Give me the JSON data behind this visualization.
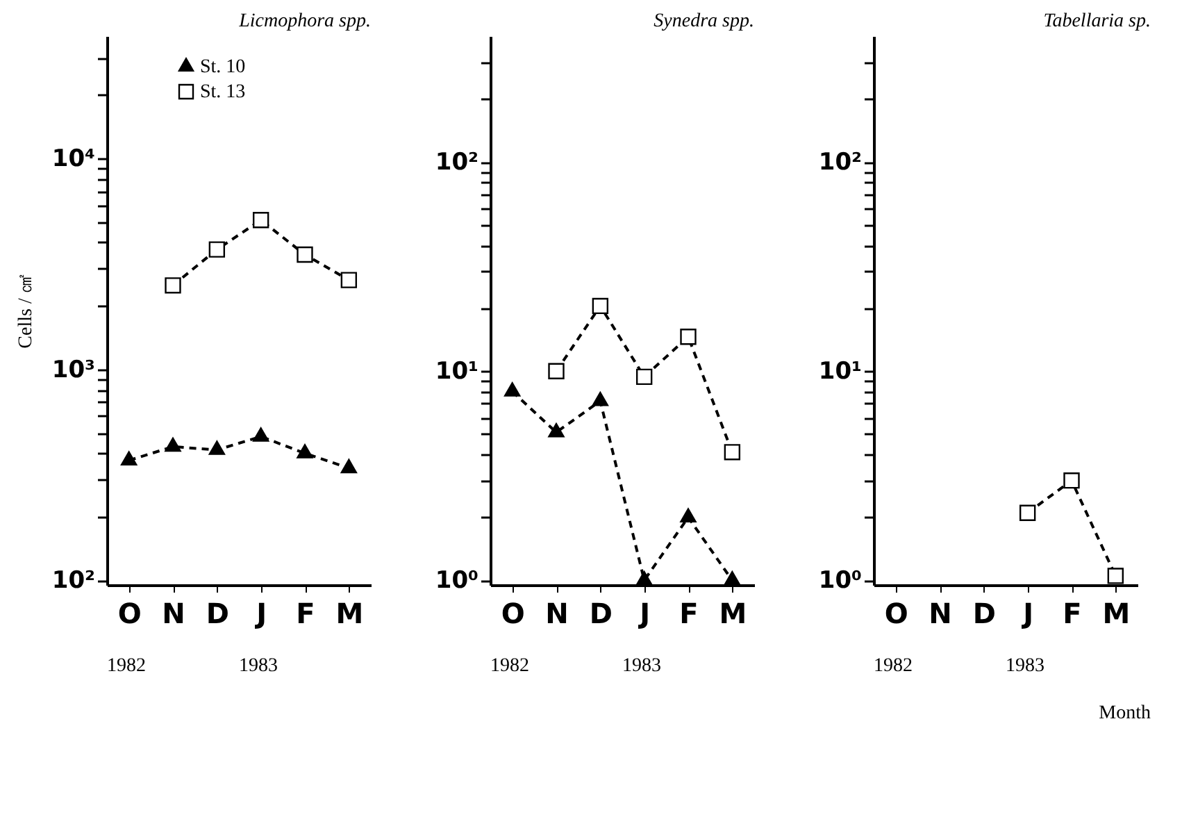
{
  "chart_data": [
    {
      "type": "line",
      "title": "Licmophora spp.",
      "ylabel": "Cells / ㎠",
      "categories": [
        "O",
        "N",
        "D",
        "J",
        "F",
        "M"
      ],
      "log": true,
      "ylim": [
        95,
        38000
      ],
      "yticks": [
        {
          "value": 100,
          "label": "10²"
        },
        {
          "value": 200,
          "label": null
        },
        {
          "value": 300,
          "label": null
        },
        {
          "value": 400,
          "label": null
        },
        {
          "value": 500,
          "label": null
        },
        {
          "value": 600,
          "label": null
        },
        {
          "value": 700,
          "label": null
        },
        {
          "value": 800,
          "label": null
        },
        {
          "value": 900,
          "label": null
        },
        {
          "value": 1000,
          "label": "10³"
        },
        {
          "value": 2000,
          "label": null
        },
        {
          "value": 3000,
          "label": null
        },
        {
          "value": 4000,
          "label": null
        },
        {
          "value": 5000,
          "label": null
        },
        {
          "value": 6000,
          "label": null
        },
        {
          "value": 7000,
          "label": null
        },
        {
          "value": 8000,
          "label": null
        },
        {
          "value": 9000,
          "label": null
        },
        {
          "value": 10000,
          "label": "10⁴"
        },
        {
          "value": 20000,
          "label": null
        },
        {
          "value": 30000,
          "label": null
        }
      ],
      "line_style": "dashed",
      "legend": "top left",
      "grid": false,
      "series": [
        {
          "name": "St. 10",
          "color": "#000000",
          "marker": "triangle",
          "values": [
            370,
            430,
            415,
            480,
            400,
            340
          ]
        },
        {
          "name": "St. 13",
          "color": "#000000",
          "marker": "square",
          "values": [
            null,
            2500,
            3700,
            5100,
            3500,
            2650
          ]
        }
      ],
      "annotations": [
        "1982",
        "1983"
      ]
    },
    {
      "type": "line",
      "title": "Synedra spp.",
      "categories": [
        "O",
        "N",
        "D",
        "J",
        "F",
        "M"
      ],
      "log": true,
      "ylim": [
        0.95,
        400
      ],
      "yticks": [
        {
          "value": 1,
          "label": "10⁰"
        },
        {
          "value": 2,
          "label": null
        },
        {
          "value": 3,
          "label": null
        },
        {
          "value": 4,
          "label": null
        },
        {
          "value": 5,
          "label": null
        },
        {
          "value": 6,
          "label": null
        },
        {
          "value": 7,
          "label": null
        },
        {
          "value": 8,
          "label": null
        },
        {
          "value": 9,
          "label": null
        },
        {
          "value": 10,
          "label": "10¹"
        },
        {
          "value": 20,
          "label": null
        },
        {
          "value": 30,
          "label": null
        },
        {
          "value": 40,
          "label": null
        },
        {
          "value": 50,
          "label": null
        },
        {
          "value": 60,
          "label": null
        },
        {
          "value": 70,
          "label": null
        },
        {
          "value": 80,
          "label": null
        },
        {
          "value": 90,
          "label": null
        },
        {
          "value": 100,
          "label": "10²"
        },
        {
          "value": 200,
          "label": null
        },
        {
          "value": 300,
          "label": null
        }
      ],
      "line_style": "dashed",
      "grid": false,
      "series": [
        {
          "color": "#000000",
          "marker": "triangle",
          "values": [
            8.0,
            5.1,
            7.2,
            1,
            2,
            1
          ]
        },
        {
          "color": "#000000",
          "marker": "square",
          "values": [
            null,
            10,
            20.5,
            9.4,
            14.6,
            4.1
          ]
        }
      ],
      "annotations": [
        "1982",
        "1983"
      ]
    },
    {
      "type": "line",
      "title": "Tabellaria sp.",
      "categories": [
        "O",
        "N",
        "D",
        "J",
        "F",
        "M"
      ],
      "log": true,
      "ylim": [
        0.95,
        400
      ],
      "yticks": [
        {
          "value": 1,
          "label": "10⁰"
        },
        {
          "value": 2,
          "label": null
        },
        {
          "value": 3,
          "label": null
        },
        {
          "value": 4,
          "label": null
        },
        {
          "value": 5,
          "label": null
        },
        {
          "value": 6,
          "label": null
        },
        {
          "value": 7,
          "label": null
        },
        {
          "value": 8,
          "label": null
        },
        {
          "value": 9,
          "label": null
        },
        {
          "value": 10,
          "label": "10¹"
        },
        {
          "value": 20,
          "label": null
        },
        {
          "value": 30,
          "label": null
        },
        {
          "value": 40,
          "label": null
        },
        {
          "value": 50,
          "label": null
        },
        {
          "value": 60,
          "label": null
        },
        {
          "value": 70,
          "label": null
        },
        {
          "value": 80,
          "label": null
        },
        {
          "value": 90,
          "label": null
        },
        {
          "value": 100,
          "label": "10²"
        },
        {
          "value": 200,
          "label": null
        },
        {
          "value": 300,
          "label": null
        }
      ],
      "line_style": "dashed",
      "grid": false,
      "series": [
        {
          "color": "#000000",
          "marker": "square",
          "values": [
            null,
            null,
            null,
            2.1,
            3,
            1.05
          ]
        }
      ],
      "annotations": [
        "1982",
        "1983",
        "Month"
      ]
    }
  ]
}
